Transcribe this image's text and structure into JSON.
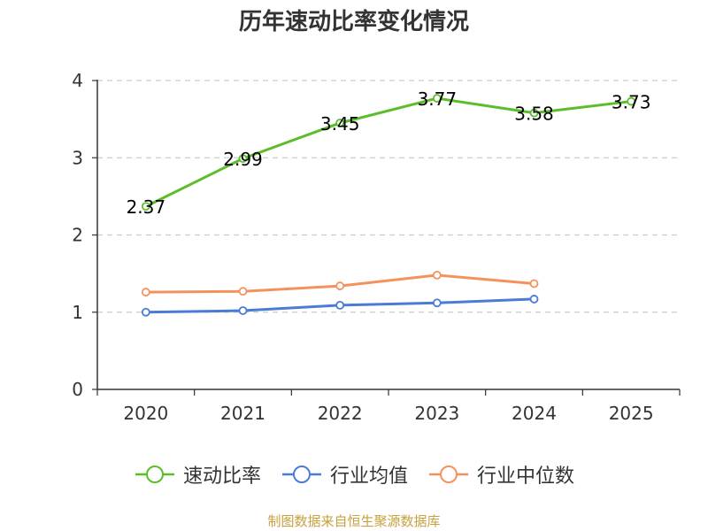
{
  "chart_data": {
    "type": "line",
    "title": "历年速动比率变化情况",
    "categories": [
      "2020",
      "2021",
      "2022",
      "2023",
      "2024",
      "2025"
    ],
    "ylim": [
      0,
      4
    ],
    "yticks": [
      0,
      1,
      2,
      3,
      4
    ],
    "grid": true,
    "series": [
      {
        "name": "速动比率",
        "color": "#5cbd2b",
        "values": [
          2.37,
          2.99,
          3.45,
          3.77,
          3.58,
          3.73
        ],
        "labels": true
      },
      {
        "name": "行业均值",
        "color": "#4a7bd6",
        "values": [
          1.0,
          1.02,
          1.09,
          1.12,
          1.17,
          null
        ],
        "labels": false
      },
      {
        "name": "行业中位数",
        "color": "#f5925c",
        "values": [
          1.26,
          1.27,
          1.34,
          1.48,
          1.37,
          null
        ],
        "labels": false
      }
    ],
    "legend_position": "bottom"
  },
  "source": "制图数据来自恒生聚源数据库"
}
